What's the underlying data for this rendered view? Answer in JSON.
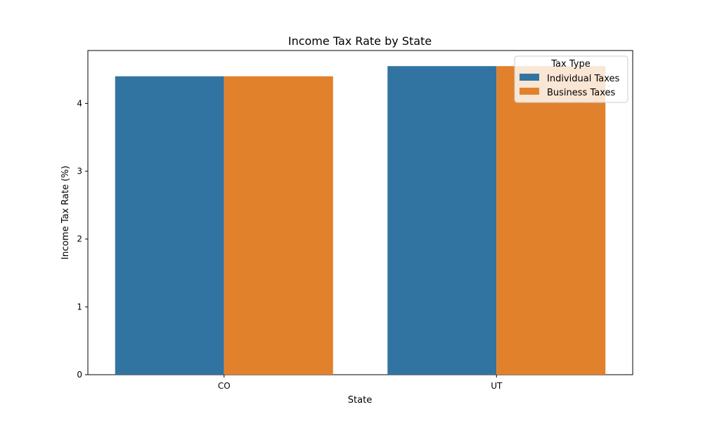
{
  "chart_data": {
    "type": "bar",
    "title": "Income Tax Rate by State",
    "xlabel": "State",
    "ylabel": "Income Tax Rate (%)",
    "categories": [
      "CO",
      "UT"
    ],
    "series": [
      {
        "name": "Individual Taxes",
        "values": [
          4.4,
          4.55
        ],
        "color": "#3274a1"
      },
      {
        "name": "Business Taxes",
        "values": [
          4.4,
          4.55
        ],
        "color": "#e1812c"
      }
    ],
    "ylim": [
      0,
      4.78
    ],
    "yticks": [
      0,
      1,
      2,
      3,
      4
    ],
    "ytick_labels": [
      "0",
      "1",
      "2",
      "3",
      "4"
    ],
    "grid": false,
    "legend": {
      "title": "Tax Type",
      "position": "top-right"
    }
  }
}
